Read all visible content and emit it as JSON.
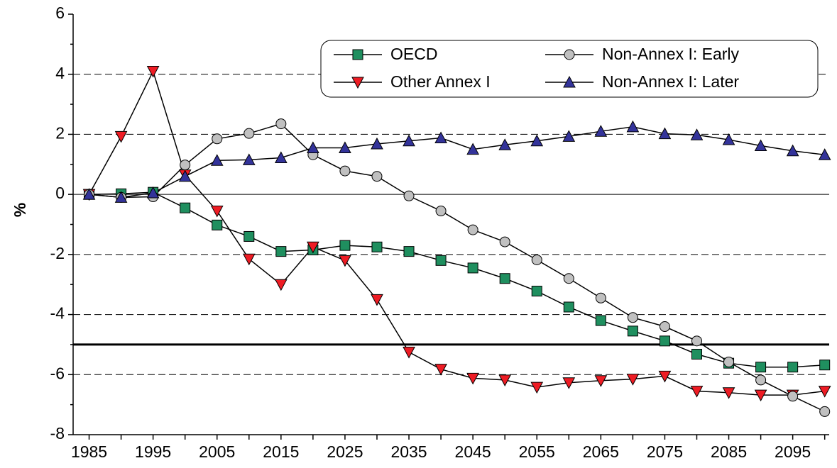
{
  "chart_data": {
    "type": "line",
    "y_label": "%",
    "x": [
      1985,
      1990,
      1995,
      2000,
      2005,
      2010,
      2015,
      2020,
      2025,
      2030,
      2035,
      2040,
      2045,
      2050,
      2055,
      2060,
      2065,
      2070,
      2075,
      2080,
      2085,
      2090,
      2095,
      2100
    ],
    "series": [
      {
        "name": "OECD",
        "color": "#1f8f5f",
        "marker": "square",
        "values": [
          0,
          0.02,
          0.07,
          -0.45,
          -1.02,
          -1.4,
          -1.9,
          -1.85,
          -1.7,
          -1.75,
          -1.9,
          -2.2,
          -2.45,
          -2.8,
          -3.22,
          -3.75,
          -4.2,
          -4.55,
          -4.88,
          -5.32,
          -5.62,
          -5.75,
          -5.75,
          -5.68
        ]
      },
      {
        "name": "Other Annex I",
        "color": "#ee1c24",
        "marker": "triangle-down",
        "values": [
          0,
          1.93,
          4.1,
          0.65,
          -0.55,
          -2.15,
          -3.0,
          -1.75,
          -2.2,
          -3.5,
          -5.25,
          -5.82,
          -6.12,
          -6.18,
          -6.42,
          -6.27,
          -6.2,
          -6.15,
          -6.05,
          -6.55,
          -6.6,
          -6.68,
          -6.68,
          -6.55
        ]
      },
      {
        "name": "Non-Annex I: Early",
        "color": "#c0c0c0",
        "marker": "circle",
        "values": [
          0,
          -0.1,
          -0.08,
          0.98,
          1.85,
          2.03,
          2.35,
          1.32,
          0.78,
          0.6,
          -0.05,
          -0.55,
          -1.18,
          -1.58,
          -2.18,
          -2.8,
          -3.45,
          -4.1,
          -4.4,
          -4.88,
          -5.58,
          -6.18,
          -6.72,
          -7.23
        ]
      },
      {
        "name": "Non-Annex I: Later",
        "color": "#33339a",
        "marker": "triangle-up",
        "values": [
          0,
          -0.1,
          0.05,
          0.6,
          1.13,
          1.15,
          1.22,
          1.55,
          1.55,
          1.68,
          1.78,
          1.88,
          1.5,
          1.65,
          1.78,
          1.93,
          2.1,
          2.25,
          2.02,
          1.98,
          1.82,
          1.62,
          1.45,
          1.32
        ]
      }
    ],
    "xlim": [
      1982.5,
      2100.7
    ],
    "xticks": [
      1985,
      1995,
      2005,
      2015,
      2025,
      2035,
      2045,
      2055,
      2065,
      2075,
      2085,
      2095
    ],
    "xminorticks": [
      1990,
      2000,
      2010,
      2020,
      2030,
      2040,
      2050,
      2060,
      2070,
      2080,
      2090,
      2100
    ],
    "ylim": [
      -8,
      6
    ],
    "yticks": [
      -8,
      -6,
      -4,
      -2,
      0,
      2,
      4,
      6
    ],
    "yminorticks": [
      -7,
      -5,
      -3,
      -1,
      1,
      3,
      5
    ],
    "grid": true,
    "reference_line": -5,
    "legend": "top-right"
  }
}
